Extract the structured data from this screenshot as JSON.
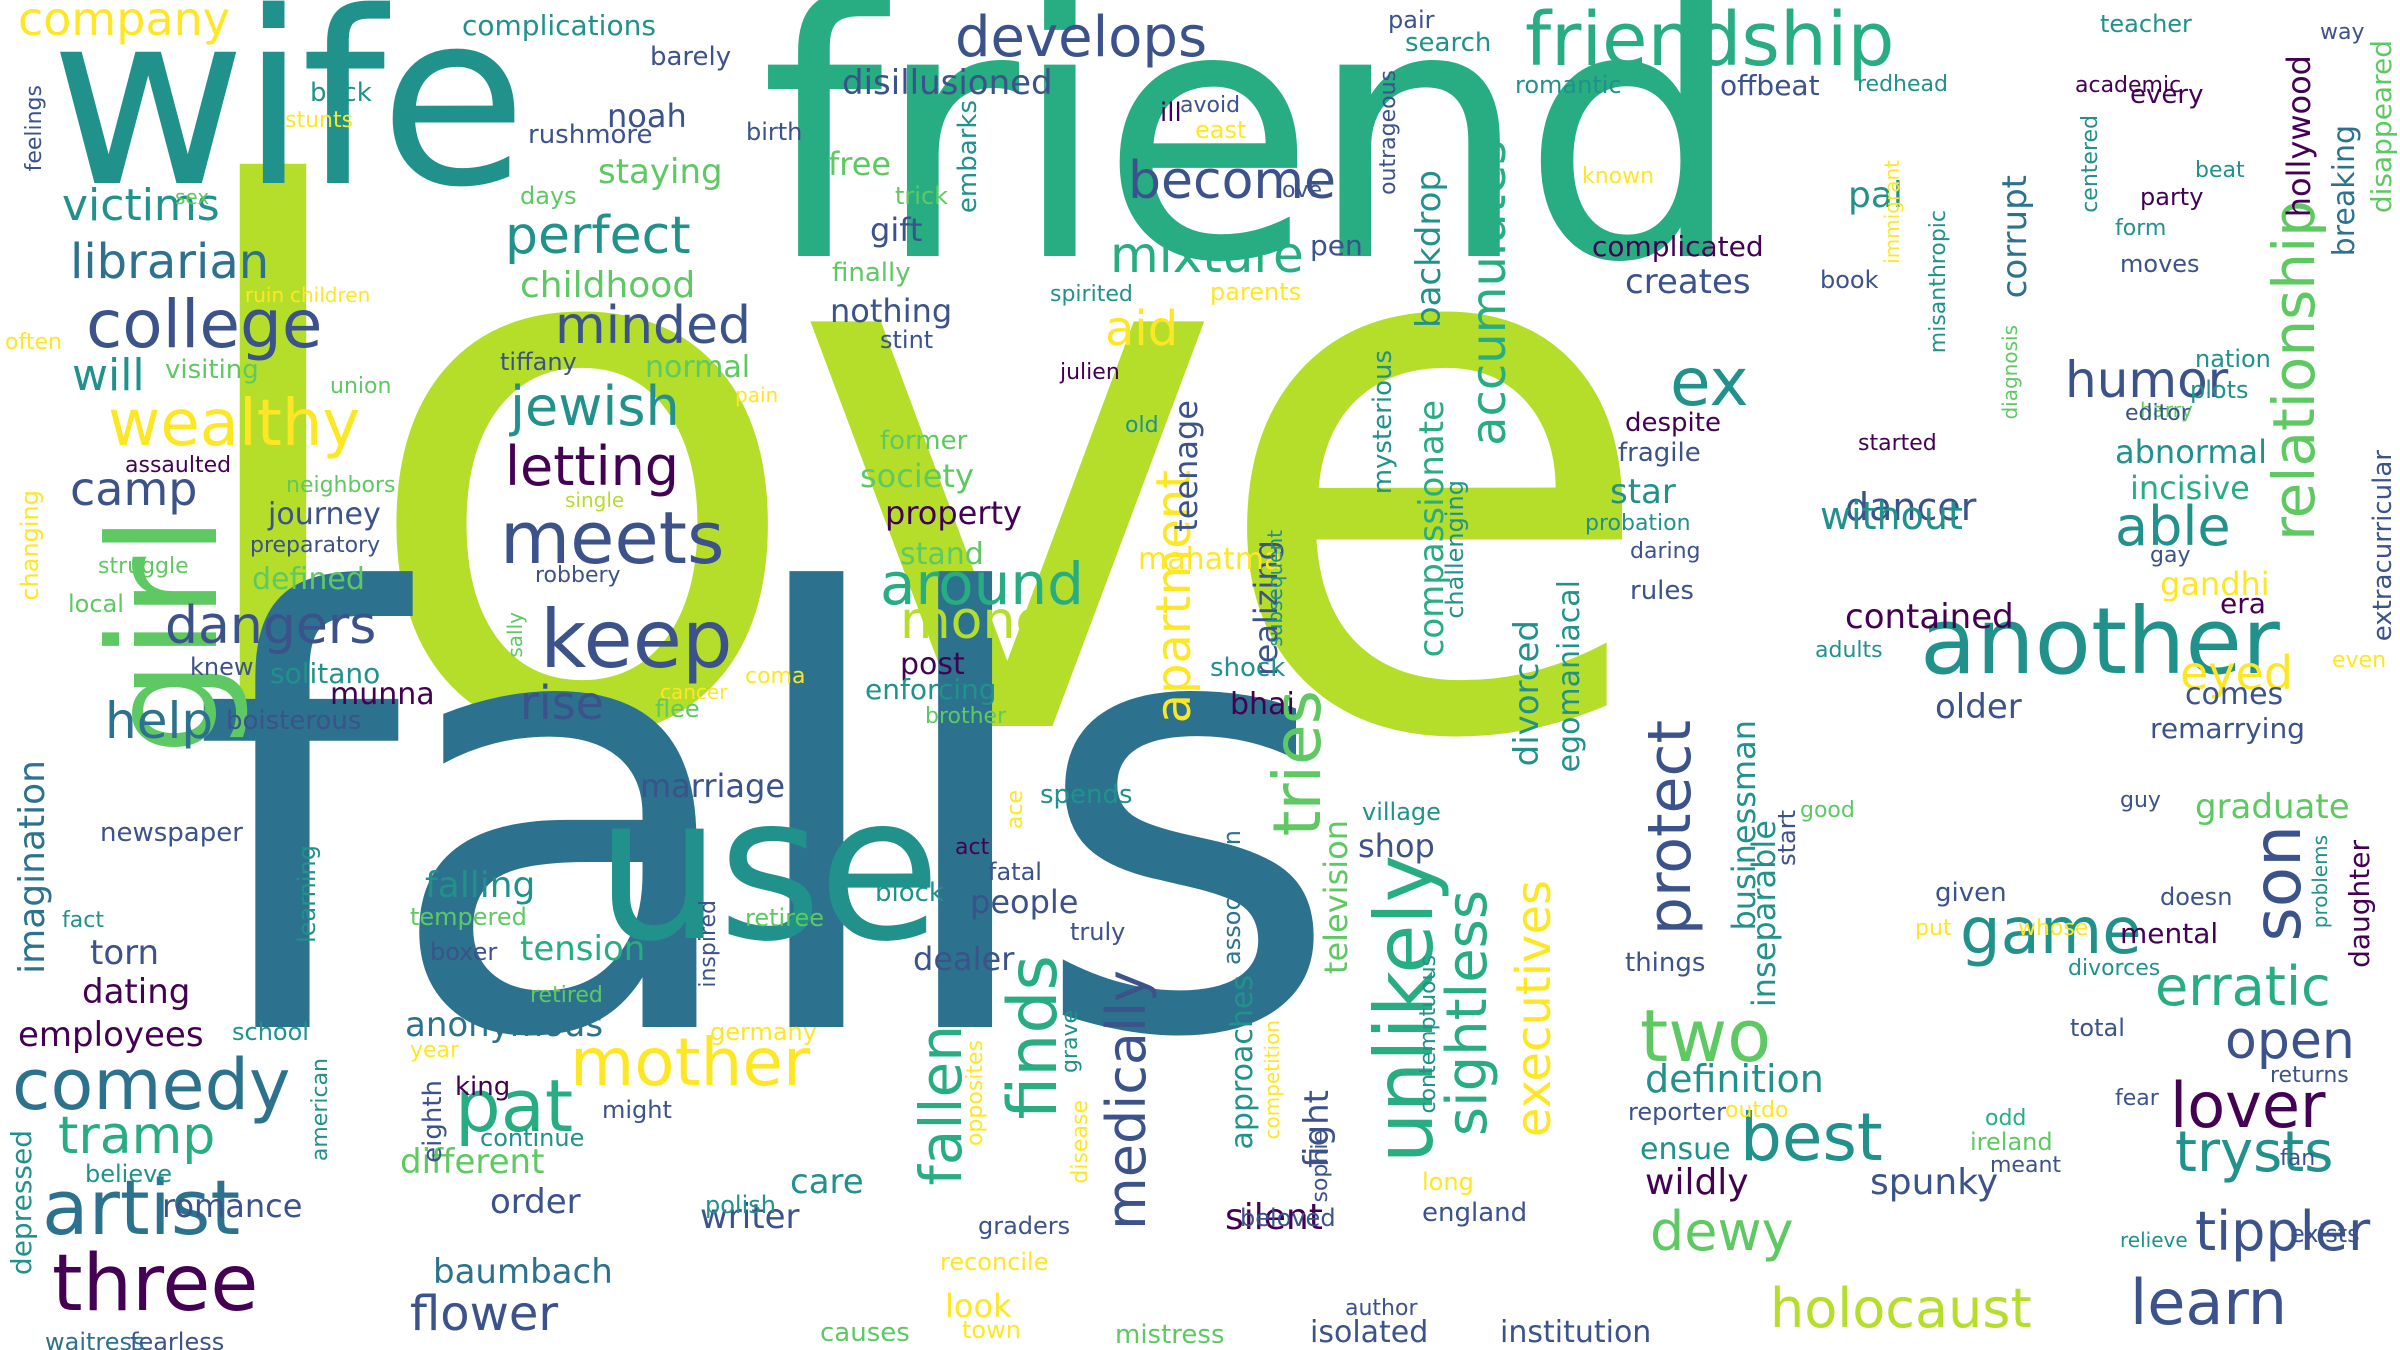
{
  "palette": {
    "deep_purple": "#440154",
    "indigo": "#3b528b",
    "blue": "#2c728e",
    "teal": "#21918c",
    "sea_green": "#27ad81",
    "green": "#5ec962",
    "lime": "#b5de2b",
    "yellow": "#fde725"
  },
  "words": [
    {
      "text": "love",
      "c": "lime"
    },
    {
      "text": "falls",
      "c": "blue"
    },
    {
      "text": "friend",
      "c": "sea_green"
    },
    {
      "text": "wife",
      "c": "teal"
    },
    {
      "text": "use",
      "c": "teal"
    },
    {
      "text": "girl",
      "c": "green"
    },
    {
      "text": "friendship",
      "c": "sea_green"
    },
    {
      "text": "company",
      "c": "yellow"
    },
    {
      "text": "develops",
      "c": "indigo"
    },
    {
      "text": "another",
      "c": "teal"
    },
    {
      "text": "college",
      "c": "indigo"
    },
    {
      "text": "wealthy",
      "c": "yellow"
    },
    {
      "text": "librarian",
      "c": "blue"
    },
    {
      "text": "victims",
      "c": "teal"
    },
    {
      "text": "mixture",
      "c": "sea_green"
    },
    {
      "text": "become",
      "c": "indigo"
    },
    {
      "text": "perfect",
      "c": "teal"
    },
    {
      "text": "minded",
      "c": "indigo"
    },
    {
      "text": "childhood",
      "c": "green"
    },
    {
      "text": "jewish",
      "c": "teal"
    },
    {
      "text": "letting",
      "c": "deep_purple"
    },
    {
      "text": "meets",
      "c": "indigo"
    },
    {
      "text": "keep",
      "c": "indigo"
    },
    {
      "text": "camp",
      "c": "indigo"
    },
    {
      "text": "will",
      "c": "teal"
    },
    {
      "text": "dangers",
      "c": "indigo"
    },
    {
      "text": "help",
      "c": "blue"
    },
    {
      "text": "rise",
      "c": "indigo"
    },
    {
      "text": "artist",
      "c": "blue"
    },
    {
      "text": "comedy",
      "c": "blue"
    },
    {
      "text": "three",
      "c": "deep_purple"
    },
    {
      "text": "mother",
      "c": "yellow"
    },
    {
      "text": "pat",
      "c": "sea_green"
    },
    {
      "text": "tramp",
      "c": "sea_green"
    },
    {
      "text": "around",
      "c": "sea_green"
    },
    {
      "text": "money",
      "c": "lime"
    },
    {
      "text": "aid",
      "c": "yellow"
    },
    {
      "text": "unlikely",
      "c": "sea_green"
    },
    {
      "text": "tries",
      "c": "green"
    },
    {
      "text": "protect",
      "c": "indigo"
    },
    {
      "text": "ex",
      "c": "teal"
    },
    {
      "text": "humor",
      "c": "indigo"
    },
    {
      "text": "able",
      "c": "teal"
    },
    {
      "text": "relationship",
      "c": "green"
    },
    {
      "text": "best",
      "c": "teal"
    },
    {
      "text": "game",
      "c": "teal"
    },
    {
      "text": "son",
      "c": "indigo"
    },
    {
      "text": "lover",
      "c": "deep_purple"
    },
    {
      "text": "trysts",
      "c": "teal"
    },
    {
      "text": "tippler",
      "c": "indigo"
    },
    {
      "text": "learn",
      "c": "indigo"
    },
    {
      "text": "holocaust",
      "c": "lime"
    },
    {
      "text": "erratic",
      "c": "sea_green"
    },
    {
      "text": "open",
      "c": "indigo"
    },
    {
      "text": "eyed",
      "c": "yellow"
    },
    {
      "text": "two",
      "c": "green"
    },
    {
      "text": "finds",
      "c": "sea_green"
    },
    {
      "text": "fallen",
      "c": "sea_green"
    },
    {
      "text": "medically",
      "c": "indigo"
    },
    {
      "text": "sightless",
      "c": "sea_green"
    },
    {
      "text": "executives",
      "c": "yellow"
    },
    {
      "text": "apartment",
      "c": "yellow"
    },
    {
      "text": "accumulates",
      "c": "sea_green"
    },
    {
      "text": "dewy",
      "c": "green"
    },
    {
      "text": "flower",
      "c": "indigo"
    },
    {
      "text": "imagination",
      "c": "blue"
    },
    {
      "text": "definition",
      "c": "teal"
    },
    {
      "text": "wildly",
      "c": "deep_purple"
    },
    {
      "text": "spunky",
      "c": "indigo"
    },
    {
      "text": "contained",
      "c": "deep_purple"
    },
    {
      "text": "older",
      "c": "indigo"
    },
    {
      "text": "dancer",
      "c": "indigo"
    },
    {
      "text": "without",
      "c": "teal"
    },
    {
      "text": "creates",
      "c": "indigo"
    },
    {
      "text": "hollywood",
      "c": "deep_purple"
    },
    {
      "text": "corrupt",
      "c": "blue"
    },
    {
      "text": "pal",
      "c": "teal"
    },
    {
      "text": "complicated",
      "c": "deep_purple"
    },
    {
      "text": "abnormal",
      "c": "teal"
    },
    {
      "text": "incisive",
      "c": "sea_green"
    },
    {
      "text": "gandhi",
      "c": "yellow"
    },
    {
      "text": "era",
      "c": "deep_purple"
    },
    {
      "text": "graduate",
      "c": "green"
    },
    {
      "text": "daughter",
      "c": "deep_purple"
    },
    {
      "text": "mental",
      "c": "deep_purple"
    },
    {
      "text": "remarrying",
      "c": "indigo"
    },
    {
      "text": "comes",
      "c": "indigo"
    },
    {
      "text": "breaking",
      "c": "blue"
    },
    {
      "text": "disappeared",
      "c": "green"
    },
    {
      "text": "extracurricular",
      "c": "indigo"
    },
    {
      "text": "divorced",
      "c": "teal"
    },
    {
      "text": "egomaniacal",
      "c": "teal"
    },
    {
      "text": "businessman",
      "c": "teal"
    },
    {
      "text": "inseparable",
      "c": "teal"
    },
    {
      "text": "compassionate",
      "c": "sea_green"
    },
    {
      "text": "backdrop",
      "c": "teal"
    },
    {
      "text": "realizing",
      "c": "indigo"
    },
    {
      "text": "teenage",
      "c": "indigo"
    },
    {
      "text": "television",
      "c": "green"
    },
    {
      "text": "mysterious",
      "c": "teal"
    },
    {
      "text": "fight",
      "c": "indigo"
    },
    {
      "text": "shop",
      "c": "indigo"
    },
    {
      "text": "silent",
      "c": "deep_purple"
    },
    {
      "text": "bhai",
      "c": "deep_purple"
    },
    {
      "text": "mahatma",
      "c": "yellow"
    },
    {
      "text": "shock",
      "c": "teal"
    },
    {
      "text": "approaches",
      "c": "teal"
    },
    {
      "text": "association",
      "c": "blue"
    },
    {
      "text": "star",
      "c": "teal"
    },
    {
      "text": "fragile",
      "c": "indigo"
    },
    {
      "text": "despite",
      "c": "deep_purple"
    },
    {
      "text": "rules",
      "c": "indigo"
    },
    {
      "text": "isolated",
      "c": "indigo"
    },
    {
      "text": "mistress",
      "c": "green"
    },
    {
      "text": "institution",
      "c": "indigo"
    },
    {
      "text": "england",
      "c": "indigo"
    },
    {
      "text": "beloved",
      "c": "indigo"
    },
    {
      "text": "graders",
      "c": "indigo"
    },
    {
      "text": "writer",
      "c": "indigo"
    },
    {
      "text": "care",
      "c": "teal"
    },
    {
      "text": "different",
      "c": "green"
    },
    {
      "text": "order",
      "c": "indigo"
    },
    {
      "text": "baumbach",
      "c": "blue"
    },
    {
      "text": "romance",
      "c": "indigo"
    },
    {
      "text": "anonymous",
      "c": "blue"
    },
    {
      "text": "tension",
      "c": "sea_green"
    },
    {
      "text": "torn",
      "c": "indigo"
    },
    {
      "text": "dating",
      "c": "deep_purple"
    },
    {
      "text": "employees",
      "c": "deep_purple"
    },
    {
      "text": "falling",
      "c": "teal"
    },
    {
      "text": "marriage",
      "c": "indigo"
    },
    {
      "text": "people",
      "c": "indigo"
    },
    {
      "text": "dealer",
      "c": "indigo"
    },
    {
      "text": "spends",
      "c": "teal"
    },
    {
      "text": "look",
      "c": "yellow"
    },
    {
      "text": "town",
      "c": "yellow"
    },
    {
      "text": "causes",
      "c": "green"
    },
    {
      "text": "fearless",
      "c": "indigo"
    },
    {
      "text": "waitress",
      "c": "blue"
    },
    {
      "text": "depressed",
      "c": "teal"
    },
    {
      "text": "polish",
      "c": "teal"
    },
    {
      "text": "believe",
      "c": "teal"
    },
    {
      "text": "continue",
      "c": "teal"
    },
    {
      "text": "eighth",
      "c": "indigo"
    },
    {
      "text": "king",
      "c": "deep_purple"
    },
    {
      "text": "might",
      "c": "indigo"
    },
    {
      "text": "american",
      "c": "teal"
    },
    {
      "text": "school",
      "c": "teal"
    },
    {
      "text": "newspaper",
      "c": "indigo"
    },
    {
      "text": "learning",
      "c": "teal"
    },
    {
      "text": "boisterous",
      "c": "indigo"
    },
    {
      "text": "munna",
      "c": "deep_purple"
    },
    {
      "text": "solitano",
      "c": "teal"
    },
    {
      "text": "knew",
      "c": "indigo"
    },
    {
      "text": "defined",
      "c": "green"
    },
    {
      "text": "journey",
      "c": "indigo"
    },
    {
      "text": "preparatory",
      "c": "indigo"
    },
    {
      "text": "neighbors",
      "c": "green"
    },
    {
      "text": "assaulted",
      "c": "deep_purple"
    },
    {
      "text": "visiting",
      "c": "green"
    },
    {
      "text": "normal",
      "c": "green"
    },
    {
      "text": "tiffany",
      "c": "indigo"
    },
    {
      "text": "noah",
      "c": "indigo"
    },
    {
      "text": "rushmore",
      "c": "indigo"
    },
    {
      "text": "staying",
      "c": "green"
    },
    {
      "text": "barely",
      "c": "indigo"
    },
    {
      "text": "complications",
      "c": "teal"
    },
    {
      "text": "disillusioned",
      "c": "indigo"
    },
    {
      "text": "free",
      "c": "green"
    },
    {
      "text": "gift",
      "c": "indigo"
    },
    {
      "text": "nothing",
      "c": "indigo"
    },
    {
      "text": "finally",
      "c": "green"
    },
    {
      "text": "trick",
      "c": "green"
    },
    {
      "text": "embarks",
      "c": "teal"
    },
    {
      "text": "society",
      "c": "green"
    },
    {
      "text": "property",
      "c": "deep_purple"
    },
    {
      "text": "stand",
      "c": "green"
    },
    {
      "text": "post",
      "c": "deep_purple"
    },
    {
      "text": "enforcing",
      "c": "teal"
    },
    {
      "text": "brother",
      "c": "green"
    },
    {
      "text": "former",
      "c": "green"
    },
    {
      "text": "back",
      "c": "teal"
    },
    {
      "text": "stunts",
      "c": "yellow"
    },
    {
      "text": "feelings",
      "c": "indigo"
    },
    {
      "text": "sex",
      "c": "green"
    },
    {
      "text": "ruin",
      "c": "yellow"
    },
    {
      "text": "children",
      "c": "yellow"
    },
    {
      "text": "often",
      "c": "yellow"
    },
    {
      "text": "union",
      "c": "green"
    },
    {
      "text": "changing",
      "c": "yellow"
    },
    {
      "text": "struggle",
      "c": "green"
    },
    {
      "text": "local",
      "c": "green"
    },
    {
      "text": "single",
      "c": "lime"
    },
    {
      "text": "robbery",
      "c": "indigo"
    },
    {
      "text": "sally",
      "c": "green"
    },
    {
      "text": "cancer",
      "c": "yellow"
    },
    {
      "text": "coma",
      "c": "yellow"
    },
    {
      "text": "flee",
      "c": "green"
    },
    {
      "text": "days",
      "c": "green"
    },
    {
      "text": "ill",
      "c": "deep_purple"
    },
    {
      "text": "birth",
      "c": "indigo"
    },
    {
      "text": "east",
      "c": "yellow"
    },
    {
      "text": "avoid",
      "c": "indigo"
    },
    {
      "text": "ove",
      "c": "indigo"
    },
    {
      "text": "pen",
      "c": "indigo"
    },
    {
      "text": "pair",
      "c": "indigo"
    },
    {
      "text": "search",
      "c": "teal"
    },
    {
      "text": "romantic",
      "c": "teal"
    },
    {
      "text": "offbeat",
      "c": "indigo"
    },
    {
      "text": "redhead",
      "c": "teal"
    },
    {
      "text": "teacher",
      "c": "teal"
    },
    {
      "text": "academic",
      "c": "deep_purple"
    },
    {
      "text": "every",
      "c": "deep_purple"
    },
    {
      "text": "way",
      "c": "indigo"
    },
    {
      "text": "outrageous",
      "c": "indigo"
    },
    {
      "text": "known",
      "c": "yellow"
    },
    {
      "text": "book",
      "c": "indigo"
    },
    {
      "text": "immigrant",
      "c": "yellow"
    },
    {
      "text": "misanthropic",
      "c": "teal"
    },
    {
      "text": "centered",
      "c": "teal"
    },
    {
      "text": "beat",
      "c": "teal"
    },
    {
      "text": "party",
      "c": "deep_purple"
    },
    {
      "text": "form",
      "c": "teal"
    },
    {
      "text": "moves",
      "c": "indigo"
    },
    {
      "text": "diagnosis",
      "c": "green"
    },
    {
      "text": "nation",
      "c": "teal"
    },
    {
      "text": "plots",
      "c": "teal"
    },
    {
      "text": "harry",
      "c": "green"
    },
    {
      "text": "editor",
      "c": "indigo"
    },
    {
      "text": "started",
      "c": "deep_purple"
    },
    {
      "text": "gay",
      "c": "indigo"
    },
    {
      "text": "probation",
      "c": "teal"
    },
    {
      "text": "daring",
      "c": "indigo"
    },
    {
      "text": "adults",
      "c": "teal"
    },
    {
      "text": "even",
      "c": "yellow"
    },
    {
      "text": "guy",
      "c": "indigo"
    },
    {
      "text": "good",
      "c": "green"
    },
    {
      "text": "start",
      "c": "indigo"
    },
    {
      "text": "given",
      "c": "indigo"
    },
    {
      "text": "put",
      "c": "yellow"
    },
    {
      "text": "whose",
      "c": "yellow"
    },
    {
      "text": "doesn",
      "c": "indigo"
    },
    {
      "text": "problems",
      "c": "teal"
    },
    {
      "text": "divorces",
      "c": "teal"
    },
    {
      "text": "things",
      "c": "indigo"
    },
    {
      "text": "total",
      "c": "indigo"
    },
    {
      "text": "fear",
      "c": "indigo"
    },
    {
      "text": "returns",
      "c": "indigo"
    },
    {
      "text": "ireland",
      "c": "green"
    },
    {
      "text": "odd",
      "c": "sea_green"
    },
    {
      "text": "meant",
      "c": "indigo"
    },
    {
      "text": "fan",
      "c": "indigo"
    },
    {
      "text": "exists",
      "c": "indigo"
    },
    {
      "text": "relieve",
      "c": "teal"
    },
    {
      "text": "outdo",
      "c": "yellow"
    },
    {
      "text": "reporter",
      "c": "indigo"
    },
    {
      "text": "ensue",
      "c": "teal"
    },
    {
      "text": "author",
      "c": "indigo"
    },
    {
      "text": "contemptuous",
      "c": "teal"
    },
    {
      "text": "challenging",
      "c": "teal"
    },
    {
      "text": "subsequent",
      "c": "teal"
    },
    {
      "text": "village",
      "c": "teal"
    },
    {
      "text": "sophie",
      "c": "indigo"
    },
    {
      "text": "competition",
      "c": "yellow"
    },
    {
      "text": "long",
      "c": "yellow"
    },
    {
      "text": "disease",
      "c": "yellow"
    },
    {
      "text": "grave",
      "c": "teal"
    },
    {
      "text": "truly",
      "c": "indigo"
    },
    {
      "text": "block",
      "c": "teal"
    },
    {
      "text": "fatal",
      "c": "indigo"
    },
    {
      "text": "act",
      "c": "deep_purple"
    },
    {
      "text": "ace",
      "c": "yellow"
    },
    {
      "text": "opposites",
      "c": "yellow"
    },
    {
      "text": "germany",
      "c": "yellow"
    },
    {
      "text": "reconcile",
      "c": "yellow"
    },
    {
      "text": "retiree",
      "c": "green"
    },
    {
      "text": "retired",
      "c": "green"
    },
    {
      "text": "tempered",
      "c": "green"
    },
    {
      "text": "boxer",
      "c": "indigo"
    },
    {
      "text": "inspired",
      "c": "indigo"
    },
    {
      "text": "fact",
      "c": "teal"
    },
    {
      "text": "year",
      "c": "yellow"
    },
    {
      "text": "parents",
      "c": "yellow"
    },
    {
      "text": "spirited",
      "c": "teal"
    },
    {
      "text": "stint",
      "c": "indigo"
    },
    {
      "text": "julien",
      "c": "deep_purple"
    },
    {
      "text": "old",
      "c": "teal"
    },
    {
      "text": "pain",
      "c": "yellow"
    }
  ]
}
